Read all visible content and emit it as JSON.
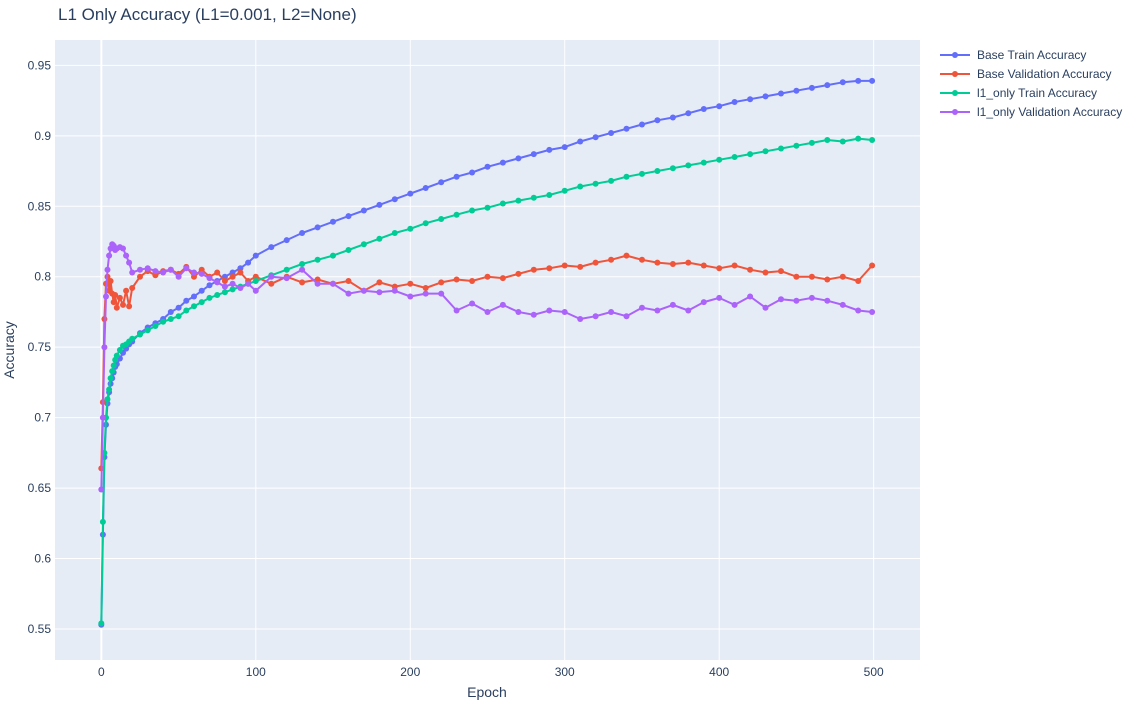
{
  "chart_data": {
    "type": "line",
    "title": "L1 Only Accuracy (L1=0.001, L2=None)",
    "xlabel": "Epoch",
    "ylabel": "Accuracy",
    "xlim": [
      -30,
      530
    ],
    "ylim": [
      0.528,
      0.968
    ],
    "xticks": [
      0,
      100,
      200,
      300,
      400,
      500
    ],
    "xtick_labels": [
      "0",
      "100",
      "200",
      "300",
      "400",
      "500"
    ],
    "yticks": [
      0.55,
      0.6,
      0.65,
      0.7,
      0.75,
      0.8,
      0.85,
      0.9,
      0.95
    ],
    "ytick_labels": [
      "0.55",
      "0.6",
      "0.65",
      "0.7",
      "0.75",
      "0.8",
      "0.85",
      "0.9",
      "0.95"
    ],
    "grid": true,
    "legend_position": "top-right outside",
    "x": [
      0,
      1,
      2,
      3,
      4,
      5,
      6,
      7,
      8,
      9,
      10,
      12,
      14,
      16,
      18,
      20,
      25,
      30,
      35,
      40,
      45,
      50,
      55,
      60,
      65,
      70,
      75,
      80,
      85,
      90,
      95,
      100,
      110,
      120,
      130,
      140,
      150,
      160,
      170,
      180,
      190,
      200,
      210,
      220,
      230,
      240,
      250,
      260,
      270,
      280,
      290,
      300,
      310,
      320,
      330,
      340,
      350,
      360,
      370,
      380,
      390,
      400,
      410,
      420,
      430,
      440,
      450,
      460,
      470,
      480,
      490,
      499
    ],
    "series": [
      {
        "name": "Base Train Accuracy",
        "color": "#636efa",
        "values": [
          0.553,
          0.617,
          0.672,
          0.695,
          0.71,
          0.718,
          0.724,
          0.728,
          0.732,
          0.736,
          0.738,
          0.742,
          0.746,
          0.749,
          0.752,
          0.754,
          0.76,
          0.764,
          0.767,
          0.77,
          0.775,
          0.778,
          0.783,
          0.786,
          0.79,
          0.794,
          0.797,
          0.8,
          0.803,
          0.806,
          0.81,
          0.815,
          0.821,
          0.826,
          0.831,
          0.835,
          0.839,
          0.843,
          0.847,
          0.851,
          0.855,
          0.859,
          0.863,
          0.867,
          0.871,
          0.874,
          0.878,
          0.881,
          0.884,
          0.887,
          0.89,
          0.892,
          0.896,
          0.899,
          0.902,
          0.905,
          0.908,
          0.911,
          0.913,
          0.916,
          0.919,
          0.921,
          0.924,
          0.926,
          0.928,
          0.93,
          0.932,
          0.934,
          0.936,
          0.938,
          0.939,
          0.939
        ]
      },
      {
        "name": "Base Validation Accuracy",
        "color": "#ef553b",
        "values": [
          0.664,
          0.711,
          0.77,
          0.795,
          0.8,
          0.79,
          0.797,
          0.788,
          0.782,
          0.787,
          0.778,
          0.785,
          0.78,
          0.79,
          0.779,
          0.792,
          0.8,
          0.804,
          0.801,
          0.804,
          0.805,
          0.802,
          0.807,
          0.8,
          0.805,
          0.8,
          0.803,
          0.797,
          0.8,
          0.803,
          0.797,
          0.8,
          0.795,
          0.8,
          0.796,
          0.798,
          0.795,
          0.797,
          0.79,
          0.796,
          0.793,
          0.795,
          0.792,
          0.796,
          0.798,
          0.797,
          0.8,
          0.799,
          0.802,
          0.805,
          0.806,
          0.808,
          0.807,
          0.81,
          0.812,
          0.815,
          0.812,
          0.81,
          0.809,
          0.81,
          0.808,
          0.806,
          0.808,
          0.805,
          0.803,
          0.804,
          0.8,
          0.8,
          0.798,
          0.8,
          0.797,
          0.808
        ]
      },
      {
        "name": "l1_only Train Accuracy",
        "color": "#00cc96",
        "values": [
          0.554,
          0.626,
          0.675,
          0.7,
          0.713,
          0.72,
          0.728,
          0.733,
          0.737,
          0.741,
          0.744,
          0.748,
          0.751,
          0.752,
          0.754,
          0.756,
          0.759,
          0.762,
          0.765,
          0.768,
          0.77,
          0.772,
          0.776,
          0.779,
          0.782,
          0.785,
          0.787,
          0.789,
          0.791,
          0.793,
          0.795,
          0.797,
          0.801,
          0.805,
          0.809,
          0.812,
          0.815,
          0.819,
          0.823,
          0.827,
          0.831,
          0.834,
          0.838,
          0.841,
          0.844,
          0.847,
          0.849,
          0.852,
          0.854,
          0.856,
          0.858,
          0.861,
          0.864,
          0.866,
          0.868,
          0.871,
          0.873,
          0.875,
          0.877,
          0.879,
          0.881,
          0.883,
          0.885,
          0.887,
          0.889,
          0.891,
          0.893,
          0.895,
          0.897,
          0.896,
          0.898,
          0.897
        ]
      },
      {
        "name": "l1_only Validation Accuracy",
        "color": "#ab63fa",
        "values": [
          0.649,
          0.7,
          0.75,
          0.786,
          0.805,
          0.815,
          0.82,
          0.823,
          0.822,
          0.819,
          0.82,
          0.821,
          0.82,
          0.815,
          0.81,
          0.803,
          0.805,
          0.806,
          0.804,
          0.803,
          0.805,
          0.8,
          0.806,
          0.803,
          0.802,
          0.799,
          0.796,
          0.793,
          0.795,
          0.792,
          0.795,
          0.79,
          0.8,
          0.799,
          0.805,
          0.795,
          0.795,
          0.788,
          0.79,
          0.789,
          0.79,
          0.786,
          0.788,
          0.788,
          0.776,
          0.781,
          0.775,
          0.78,
          0.775,
          0.773,
          0.776,
          0.775,
          0.77,
          0.772,
          0.775,
          0.772,
          0.778,
          0.776,
          0.78,
          0.776,
          0.782,
          0.785,
          0.78,
          0.786,
          0.778,
          0.784,
          0.783,
          0.785,
          0.783,
          0.78,
          0.776,
          0.775
        ]
      }
    ]
  }
}
